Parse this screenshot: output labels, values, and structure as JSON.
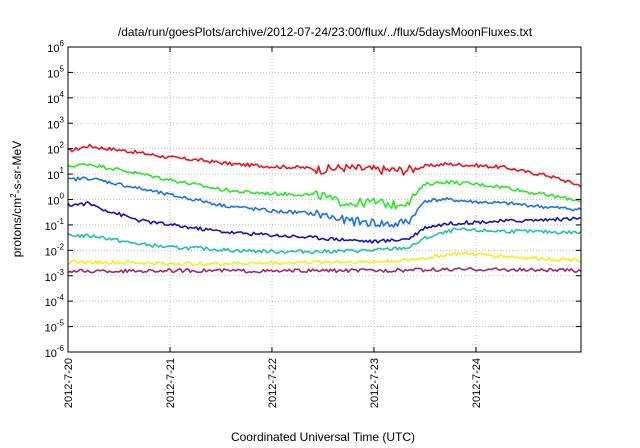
{
  "chart_data": {
    "type": "line",
    "title": "/data/run/goesPlots/archive/2012-07-24/23:00/flux/../flux/5daysMoonFluxes.txt",
    "xlabel": "Coordinated Universal Time (UTC)",
    "ylabel_main": "protons/cm",
    "ylabel_sup": "2",
    "ylabel_tail": "-s-sr-MeV",
    "x_ticks": [
      "2012-7-20",
      "2012-7-21",
      "2012-7-22",
      "2012-7-23",
      "2012-7-24"
    ],
    "xlim_days": [
      0,
      5.03
    ],
    "y_scale": "log",
    "ylim": [
      1e-06,
      1000000.0
    ],
    "y_ticks": [
      {
        "value": -6,
        "base": "10",
        "exp": "-6"
      },
      {
        "value": -5,
        "base": "10",
        "exp": "-5"
      },
      {
        "value": -4,
        "base": "10",
        "exp": "-4"
      },
      {
        "value": -3,
        "base": "10",
        "exp": "-3"
      },
      {
        "value": -2,
        "base": "10",
        "exp": "-2"
      },
      {
        "value": -1,
        "base": "10",
        "exp": "-1"
      },
      {
        "value": 0,
        "base": "10",
        "exp": "0"
      },
      {
        "value": 1,
        "base": "10",
        "exp": "1"
      },
      {
        "value": 2,
        "base": "10",
        "exp": "2"
      },
      {
        "value": 3,
        "base": "10",
        "exp": "3"
      },
      {
        "value": 4,
        "base": "10",
        "exp": "4"
      },
      {
        "value": 5,
        "base": "10",
        "exp": "5"
      },
      {
        "value": 6,
        "base": "10",
        "exp": "6"
      }
    ],
    "grid": true,
    "series": [
      {
        "color": "#e8141e",
        "x": [
          0,
          0.1,
          0.2,
          0.3,
          0.5,
          0.8,
          1.0,
          1.3,
          1.6,
          2.0,
          2.3,
          2.5,
          2.7,
          3.0,
          3.3,
          3.5,
          3.7,
          4.0,
          4.3,
          4.5,
          4.7,
          5.03
        ],
        "y": [
          80,
          100,
          130,
          110,
          90,
          60,
          45,
          35,
          25,
          20,
          18,
          15,
          18,
          15,
          14,
          20,
          25,
          22,
          18,
          12,
          9,
          3.5
        ]
      },
      {
        "color": "#2ae62a",
        "x": [
          0,
          0.2,
          0.5,
          1.0,
          1.3,
          1.5,
          1.7,
          2.0,
          2.3,
          2.5,
          2.6,
          2.8,
          3.0,
          3.2,
          3.35,
          3.5,
          3.7,
          4.0,
          4.3,
          4.5,
          4.7,
          5.03
        ],
        "y": [
          20,
          25,
          15,
          6,
          3.5,
          2.5,
          2,
          1.7,
          1.6,
          1.4,
          0.9,
          0.7,
          0.8,
          0.6,
          0.9,
          4,
          5,
          4,
          3,
          2,
          1.5,
          0.9
        ]
      },
      {
        "color": "#1a73e6",
        "x": [
          0,
          0.2,
          0.5,
          1.0,
          1.3,
          1.5,
          2.0,
          2.3,
          2.5,
          2.7,
          3.0,
          3.2,
          3.35,
          3.5,
          3.7,
          4.0,
          4.3,
          4.5,
          4.7,
          5.03
        ],
        "y": [
          6,
          7,
          4,
          1.5,
          0.9,
          0.6,
          0.35,
          0.3,
          0.25,
          0.15,
          0.12,
          0.1,
          0.15,
          0.9,
          1,
          0.8,
          0.7,
          0.6,
          0.5,
          0.4
        ]
      },
      {
        "color": "#1414b4",
        "x": [
          0,
          0.2,
          0.4,
          0.7,
          1.0,
          1.3,
          1.6,
          2.0,
          2.5,
          2.8,
          3.0,
          3.2,
          3.35,
          3.5,
          3.7,
          4.0,
          4.5,
          5.03
        ],
        "y": [
          0.6,
          0.7,
          0.35,
          0.15,
          0.1,
          0.07,
          0.05,
          0.04,
          0.03,
          0.025,
          0.022,
          0.025,
          0.03,
          0.08,
          0.11,
          0.13,
          0.15,
          0.18
        ]
      },
      {
        "color": "#20c4a0",
        "x": [
          0,
          0.3,
          0.6,
          1.0,
          1.3,
          1.6,
          2.0,
          2.5,
          3.0,
          3.35,
          3.5,
          3.8,
          4.0,
          4.5,
          5.03
        ],
        "y": [
          0.04,
          0.035,
          0.02,
          0.013,
          0.012,
          0.01,
          0.009,
          0.009,
          0.01,
          0.013,
          0.03,
          0.065,
          0.06,
          0.055,
          0.05
        ]
      },
      {
        "color": "#f0f01e",
        "x": [
          0,
          0.5,
          1.0,
          1.5,
          2.0,
          2.5,
          3.0,
          3.3,
          3.5,
          3.8,
          4.0,
          4.5,
          5.03
        ],
        "y": [
          0.0035,
          0.0033,
          0.003,
          0.003,
          0.0032,
          0.0035,
          0.0035,
          0.004,
          0.005,
          0.0075,
          0.007,
          0.005,
          0.0042
        ]
      },
      {
        "color": "#a0286e",
        "x": [
          0,
          0.5,
          1.0,
          1.5,
          2.0,
          2.5,
          3.0,
          3.5,
          4.0,
          4.5,
          5.03
        ],
        "y": [
          0.0015,
          0.0015,
          0.0016,
          0.0016,
          0.0015,
          0.0016,
          0.0016,
          0.0017,
          0.0018,
          0.0017,
          0.0016
        ]
      }
    ]
  }
}
